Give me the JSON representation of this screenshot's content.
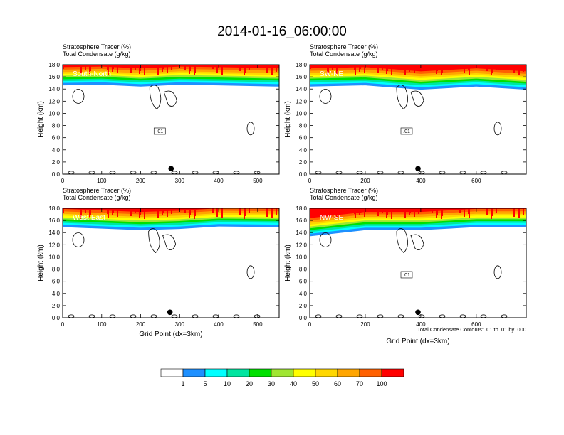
{
  "title": "2014-01-16_06:00:00",
  "chart_data": [
    {
      "type": "heatmap",
      "label": "South-North",
      "subtitle_lines": [
        "Stratosphere Tracer   (%)",
        "Total Condensate   (g/kg)"
      ],
      "ylabel": "Height (km)",
      "xlabel": "",
      "xlim": [
        0,
        555
      ],
      "ylim": [
        0,
        18
      ],
      "xticks": [
        "0",
        "100",
        "200",
        "300",
        "400",
        "500"
      ],
      "xtick_values": [
        0,
        100,
        200,
        300,
        400,
        500
      ],
      "yticks": [
        "0.0",
        "2.0",
        "4.0",
        "6.0",
        "8.0",
        "10.0",
        "12.0",
        "14.0",
        "16.0",
        "18.0"
      ],
      "contour_label": ".01",
      "marker": {
        "x": 278,
        "y": 0.9
      },
      "tracer_top": [
        {
          "x": 0,
          "y": 15.2
        },
        {
          "x": 100,
          "y": 15.3
        },
        {
          "x": 200,
          "y": 15.0
        },
        {
          "x": 300,
          "y": 15.3
        },
        {
          "x": 400,
          "y": 15.2
        },
        {
          "x": 555,
          "y": 15.0
        }
      ]
    },
    {
      "type": "heatmap",
      "label": "SW-NE",
      "subtitle_lines": [
        "Stratosphere Tracer   (%)",
        "Total Condensate   (g/kg)"
      ],
      "ylabel": "Height (km)",
      "xlabel": "",
      "xlim": [
        0,
        780
      ],
      "ylim": [
        0,
        18
      ],
      "xticks": [
        "0",
        "200",
        "400",
        "600"
      ],
      "xtick_values": [
        0,
        200,
        400,
        600
      ],
      "yticks": [
        "0.0",
        "2.0",
        "4.0",
        "6.0",
        "8.0",
        "10.0",
        "12.0",
        "14.0",
        "16.0",
        "18.0"
      ],
      "contour_label": ".01",
      "marker": {
        "x": 390,
        "y": 0.9
      },
      "tracer_top": [
        {
          "x": 0,
          "y": 15.0
        },
        {
          "x": 200,
          "y": 15.2
        },
        {
          "x": 400,
          "y": 14.5
        },
        {
          "x": 600,
          "y": 15.0
        },
        {
          "x": 780,
          "y": 14.5
        }
      ]
    },
    {
      "type": "heatmap",
      "label": "West-East",
      "subtitle_lines": [
        "Stratosphere Tracer   (%)",
        "Total Condensate   (g/kg)"
      ],
      "ylabel": "Height (km)",
      "xlabel": "Grid Point (dx=3km)",
      "xlim": [
        0,
        555
      ],
      "ylim": [
        0,
        18
      ],
      "xticks": [
        "0",
        "100",
        "200",
        "300",
        "400",
        "500"
      ],
      "xtick_values": [
        0,
        100,
        200,
        300,
        400,
        500
      ],
      "yticks": [
        "0.0",
        "2.0",
        "4.0",
        "6.0",
        "8.0",
        "10.0",
        "12.0",
        "14.0",
        "16.0",
        "18.0"
      ],
      "contour_label": "",
      "marker": {
        "x": 275,
        "y": 0.9
      },
      "tracer_top": [
        {
          "x": 0,
          "y": 15.5
        },
        {
          "x": 200,
          "y": 15.0
        },
        {
          "x": 300,
          "y": 15.2
        },
        {
          "x": 400,
          "y": 15.6
        },
        {
          "x": 555,
          "y": 15.5
        }
      ]
    },
    {
      "type": "heatmap",
      "label": "NW-SE",
      "subtitle_lines": [
        "Stratosphere Tracer   (%)",
        "Total Condensate   (g/kg)"
      ],
      "ylabel": "Height (km)",
      "xlabel": "Grid Point (dx=3km)",
      "xlim": [
        0,
        780
      ],
      "ylim": [
        0,
        18
      ],
      "xticks": [
        "0",
        "200",
        "400",
        "600"
      ],
      "xtick_values": [
        0,
        200,
        400,
        600
      ],
      "yticks": [
        "0.0",
        "2.0",
        "4.0",
        "6.0",
        "8.0",
        "10.0",
        "12.0",
        "14.0",
        "16.0",
        "18.0"
      ],
      "contour_label": ".01",
      "marker": {
        "x": 390,
        "y": 0.9
      },
      "contour_note": "Total Condensate Contours: .01 to .01 by .000",
      "tracer_top": [
        {
          "x": 0,
          "y": 14.0
        },
        {
          "x": 200,
          "y": 15.0
        },
        {
          "x": 400,
          "y": 15.0
        },
        {
          "x": 600,
          "y": 15.5
        },
        {
          "x": 780,
          "y": 15.5
        }
      ]
    }
  ],
  "legend": {
    "levels": [
      "1",
      "5",
      "10",
      "20",
      "30",
      "40",
      "50",
      "60",
      "70",
      "100"
    ],
    "colors": [
      "#ffffff",
      "#1e90ff",
      "#00ffff",
      "#00e5a0",
      "#00e000",
      "#a0e632",
      "#ffff00",
      "#ffd700",
      "#ffa500",
      "#ff6000",
      "#ff0000"
    ]
  }
}
